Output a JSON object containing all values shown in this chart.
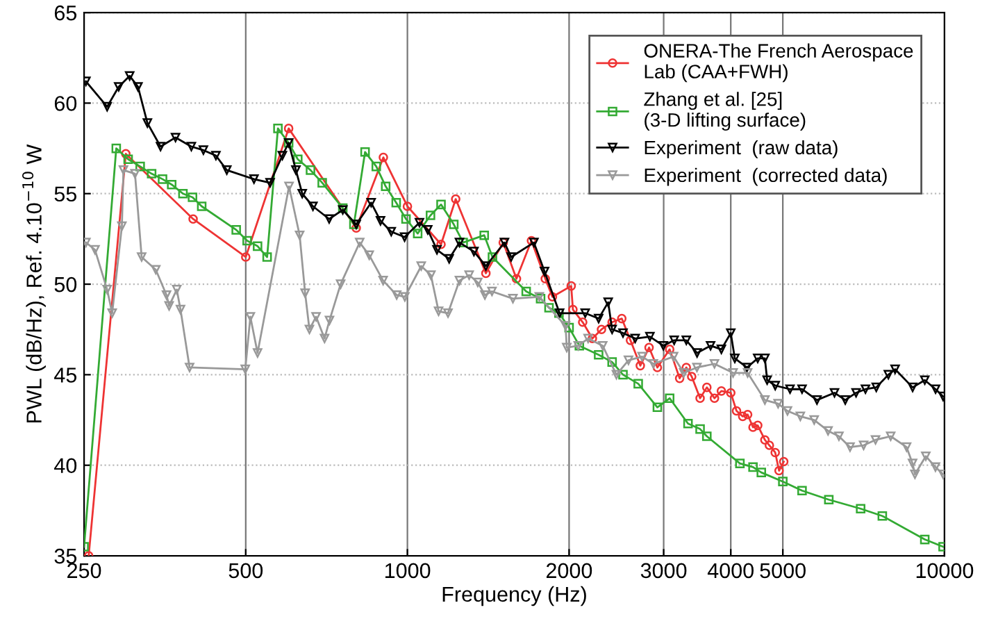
{
  "chart_data": {
    "type": "line",
    "xlabel": "Frequency (Hz)",
    "ylabel": "PWL (dB/Hz), Ref. 4.10$^{−10}$ W",
    "log": "x",
    "xlim": [
      250,
      10000
    ],
    "xticks": [
      250,
      500,
      1000,
      2000,
      3000,
      4000,
      5000,
      10000
    ],
    "ylim": [
      35,
      65
    ],
    "yticks": [
      35,
      40,
      45,
      50,
      55,
      60,
      65
    ],
    "grid": true,
    "legend": "top right",
    "series": [
      {
        "name": "ONERA-The French Aerospace\nLab (CAA+FWH)",
        "color": "#ee3333",
        "marker": "circle",
        "x": [
          255,
          299,
          399,
          500,
          601,
          803,
          902,
          1000,
          1155,
          1230,
          1400,
          1508,
          1596,
          1702,
          1806,
          1862,
          2018,
          2033,
          2120,
          2210,
          2298,
          2405,
          2507,
          2602,
          2714,
          2818,
          2920,
          3078,
          3213,
          3306,
          3383,
          3507,
          3610,
          3730,
          3842,
          4000,
          4100,
          4210,
          4300,
          4400,
          4490,
          4630,
          4720,
          4840,
          4920,
          5020
        ],
        "values": [
          35,
          57.2,
          53.6,
          51.5,
          58.6,
          53.1,
          57.0,
          54.3,
          52.2,
          54.7,
          50.6,
          52.3,
          50.3,
          52.4,
          50.3,
          49.3,
          49.9,
          48.6,
          47.9,
          47.0,
          47.5,
          47.9,
          48.1,
          46.9,
          45.5,
          46.5,
          45.4,
          46.4,
          44.8,
          45.4,
          44.9,
          43.7,
          44.3,
          43.7,
          44.1,
          44.0,
          43.0,
          42.7,
          42.8,
          42.1,
          42.2,
          41.4,
          41.1,
          40.7,
          39.7,
          40.2
        ]
      },
      {
        "name": "Zhang et al. [25]\n(3-D lifting surface)",
        "color": "#33aa33",
        "marker": "square",
        "x": [
          250,
          287,
          302,
          318,
          334,
          350,
          364,
          382,
          398,
          414,
          480,
          503,
          526,
          548,
          574,
          601,
          625,
          660,
          694,
          758,
          795,
          834,
          875,
          911,
          953,
          994,
          1045,
          1104,
          1155,
          1220,
          1270,
          1390,
          1440,
          1664,
          1770,
          1835,
          1915,
          2000,
          2090,
          2270,
          2405,
          2520,
          2690,
          2920,
          3078,
          3330,
          3507,
          3610,
          4160,
          4400,
          4560,
          5000,
          5430,
          6090,
          6980,
          7660,
          9190,
          9940
        ],
        "values": [
          35.5,
          57.5,
          56.9,
          56.5,
          56.1,
          55.8,
          55.5,
          55.0,
          54.8,
          54.3,
          53.0,
          52.4,
          52.1,
          51.5,
          58.6,
          57.8,
          56.9,
          56.3,
          55.6,
          54.2,
          53.3,
          57.3,
          56.5,
          55.4,
          54.5,
          53.6,
          52.8,
          53.8,
          54.4,
          53.3,
          52.3,
          52.7,
          51.5,
          49.6,
          49.2,
          48.7,
          48.4,
          47.6,
          46.6,
          46.1,
          45.7,
          45.0,
          44.5,
          43.2,
          43.7,
          42.3,
          42.0,
          41.6,
          40.1,
          39.9,
          39.6,
          39.1,
          38.6,
          38.1,
          37.6,
          37.2,
          35.9,
          35.5
        ]
      },
      {
        "name": "Experiment  (raw data)",
        "color": "#000000",
        "marker": "triangle",
        "x": [
          252,
          276,
          290,
          304,
          315,
          328,
          347,
          370,
          396,
          417,
          440,
          461,
          518,
          555,
          585,
          601,
          620,
          637,
          667,
          715,
          758,
          803,
          856,
          891,
          933,
          988,
          1053,
          1091,
          1135,
          1196,
          1250,
          1330,
          1400,
          1516,
          1560,
          1720,
          1800,
          1920,
          2143,
          2270,
          2365,
          2405,
          2520,
          2655,
          2828,
          2996,
          3138,
          3306,
          3462,
          3668,
          3842,
          4000,
          4070,
          4287,
          4490,
          4630,
          4675,
          4840,
          5157,
          5430,
          5788,
          6240,
          6535,
          6845,
          7126,
          7464,
          7862,
          8092,
          8723,
          9190,
          9625,
          9940
        ],
        "values": [
          61.2,
          59.8,
          60.9,
          61.5,
          60.9,
          58.9,
          57.6,
          58.1,
          57.6,
          57.4,
          57.1,
          56.3,
          55.8,
          55.6,
          57.1,
          57.8,
          56.3,
          55.0,
          54.3,
          53.6,
          54.1,
          53.3,
          54.5,
          53.5,
          52.9,
          52.6,
          53.4,
          53.0,
          51.9,
          51.4,
          52.3,
          51.8,
          51.0,
          52.3,
          51.5,
          52.3,
          50.7,
          48.4,
          48.4,
          48.1,
          49.0,
          47.5,
          47.3,
          47.0,
          47.1,
          46.6,
          46.9,
          46.9,
          46.2,
          46.6,
          46.4,
          47.3,
          45.9,
          45.4,
          45.9,
          45.9,
          44.7,
          44.4,
          44.2,
          44.2,
          43.6,
          44.0,
          43.6,
          44.0,
          44.2,
          44.3,
          45.0,
          45.3,
          44.3,
          44.7,
          44.2,
          43.8
        ]
      },
      {
        "name": "Experiment  (corrected data)",
        "color": "#999999",
        "marker": "triangle",
        "x": [
          252,
          262,
          276,
          282,
          294,
          296,
          311,
          320,
          340,
          356,
          360,
          372,
          378,
          393,
          499,
          510,
          526,
          602,
          630,
          645,
          657,
          676,
          701,
          716,
          751,
          815,
          849,
          901,
          955,
          989,
          1061,
          1106,
          1143,
          1190,
          1250,
          1303,
          1352,
          1394,
          1437,
          1572,
          1760,
          1970,
          1980,
          2080,
          2170,
          2310,
          2450,
          2580,
          2735,
          2870,
          3130,
          3270,
          3460,
          3730,
          4040,
          4300,
          4630,
          4900,
          5100,
          5390,
          5720,
          6070,
          6360,
          6670,
          7070,
          7440,
          7940,
          8500,
          8720,
          8810,
          9230,
          9620,
          9940
        ],
        "values": [
          52.3,
          51.9,
          49.7,
          48.4,
          53.2,
          56.3,
          56.1,
          51.5,
          50.8,
          49.4,
          48.8,
          49.7,
          48.6,
          45.4,
          45.3,
          48.2,
          46.2,
          55.4,
          52.7,
          49.5,
          47.5,
          48.2,
          47.0,
          48.0,
          50.0,
          52.3,
          51.6,
          50.2,
          49.4,
          49.3,
          51.0,
          50.5,
          48.5,
          48.4,
          50.2,
          50.5,
          50.1,
          49.4,
          49.6,
          49.2,
          49.3,
          47.7,
          46.5,
          46.6,
          47.0,
          46.6,
          45.0,
          45.8,
          46.0,
          45.6,
          46.0,
          45.1,
          45.4,
          45.6,
          45.1,
          45.1,
          43.6,
          43.4,
          43.0,
          42.7,
          42.5,
          41.9,
          41.6,
          41.0,
          41.1,
          41.4,
          41.6,
          41.0,
          40.1,
          39.5,
          40.5,
          39.9,
          39.5
        ]
      }
    ]
  }
}
